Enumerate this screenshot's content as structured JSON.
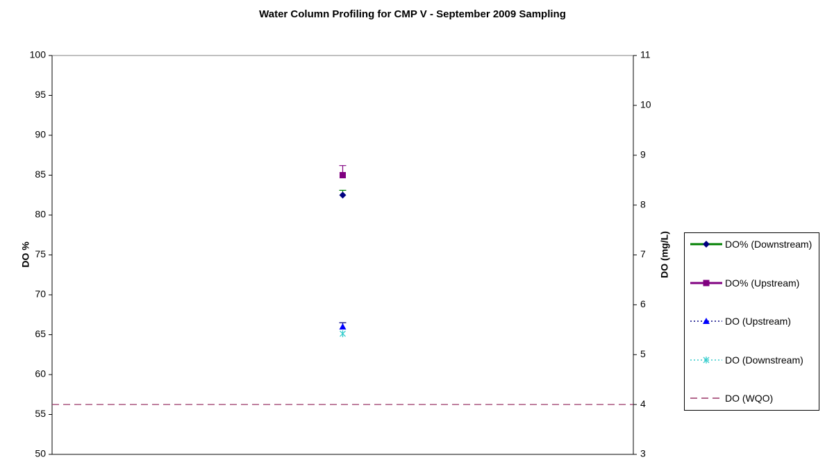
{
  "chart_data": {
    "type": "line",
    "title": "Water Column Profiling for CMP V - September 2009 Sampling",
    "ylabel": "DO %",
    "y2label": "DO (mg/L)",
    "categories": [
      null
    ],
    "ylim": [
      50,
      100
    ],
    "yticks": [
      50,
      55,
      60,
      65,
      70,
      75,
      80,
      85,
      90,
      95,
      100
    ],
    "y2lim": [
      3,
      11
    ],
    "y2ticks": [
      3,
      4,
      5,
      6,
      7,
      8,
      9,
      10,
      11
    ],
    "series": [
      {
        "name": "DO% (Downstream)",
        "color": "#008000",
        "marker_color": "#000080",
        "marker": "diamond",
        "dash": "solid",
        "values": [
          82.5
        ],
        "errors": [
          0.6
        ]
      },
      {
        "name": "DO% (Upstream)",
        "color": "#800080",
        "marker_color": "#800080",
        "marker": "square",
        "dash": "solid",
        "values": [
          85
        ],
        "errors": [
          1.2
        ]
      },
      {
        "name": "DO (Upstream)",
        "color": "#000080",
        "marker_color": "#0000ff",
        "marker": "triangle",
        "dash": "dotted",
        "axis": "y2",
        "values": [
          5.56
        ],
        "errors": [
          0.08
        ]
      },
      {
        "name": "DO (Downstream)",
        "color": "#33cccc",
        "marker_color": "#33cccc",
        "marker": "x",
        "dash": "dotted",
        "axis": "y2",
        "values": [
          5.42
        ]
      },
      {
        "name": "DO (WQO)",
        "color": "#993366",
        "marker_color": "#993366",
        "marker": "none",
        "dash": "dashed",
        "axis": "y2",
        "values": [
          4
        ]
      }
    ]
  }
}
